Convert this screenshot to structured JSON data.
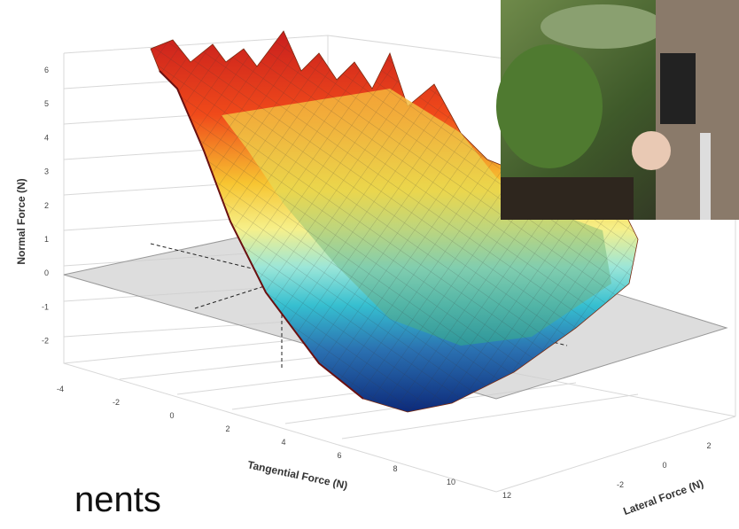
{
  "slide": {
    "body_text": "nents",
    "plot": {
      "z_axis": {
        "title": "Normal Force (N)",
        "ticks": [
          6,
          5,
          4,
          3,
          2,
          1,
          0,
          -1,
          -2
        ]
      },
      "x_axis": {
        "title": "Tangential Force (N)",
        "ticks": [
          -4,
          -2,
          0,
          2,
          4,
          6,
          8,
          10,
          12
        ]
      },
      "y_axis": {
        "title": "Lateral Force (N)",
        "ticks": [
          -2,
          0,
          2
        ]
      }
    }
  }
}
